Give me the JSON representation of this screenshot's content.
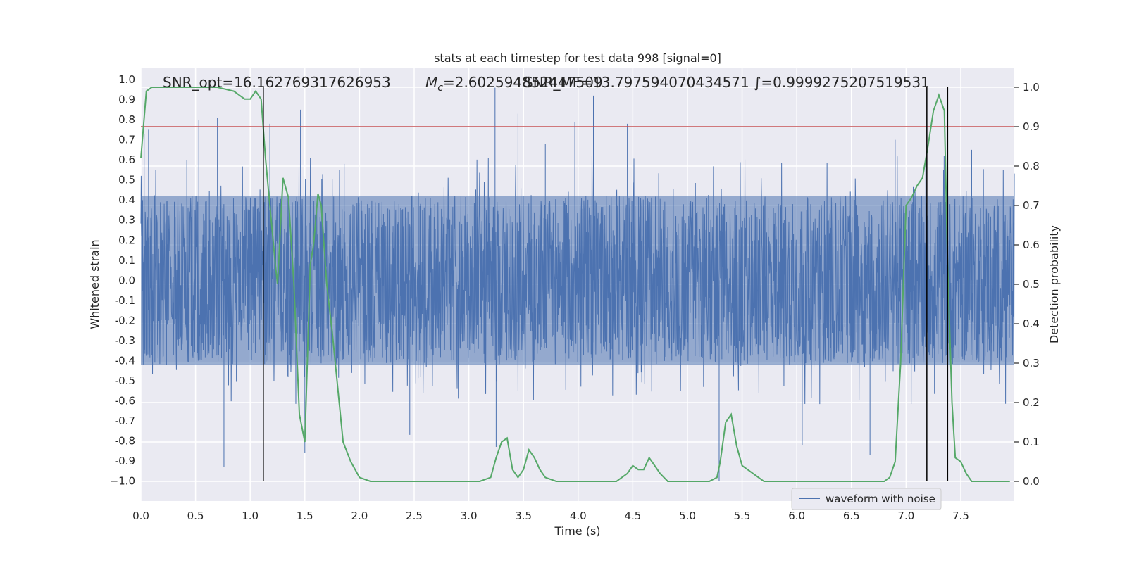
{
  "chart_data": {
    "type": "line",
    "title": "stats at each timestep for test data 998 [signal=0]",
    "xlabel": "Time (s)",
    "ylabel_left": "Whitened strain",
    "ylabel_right": "Detection probability",
    "xlim": [
      0.0,
      7.99
    ],
    "ylim_left": [
      -1.1,
      1.06
    ],
    "ylim_right": [
      -0.05,
      1.05
    ],
    "x_ticks": [
      0.0,
      0.5,
      1.0,
      1.5,
      2.0,
      2.5,
      3.0,
      3.5,
      4.0,
      4.5,
      5.0,
      5.5,
      6.0,
      6.5,
      7.0,
      7.5
    ],
    "x_tick_labels": [
      "0.0",
      "0.5",
      "1.0",
      "1.5",
      "2.0",
      "2.5",
      "3.0",
      "3.5",
      "4.0",
      "4.5",
      "5.0",
      "5.5",
      "6.0",
      "6.5",
      "7.0",
      "7.5"
    ],
    "y_left_ticks": [
      1.0,
      0.9,
      0.8,
      0.7,
      0.6,
      0.5,
      0.4,
      0.3,
      0.2,
      0.1,
      0.0,
      -0.1,
      -0.2,
      -0.3,
      -0.4,
      -0.5,
      -0.6,
      -0.7,
      -0.8,
      -0.9,
      -1.0
    ],
    "y_left_tick_labels": [
      "1.0",
      "0.9",
      "0.8",
      "0.7",
      "0.6",
      "0.5",
      "0.4",
      "0.3",
      "0.2",
      "0.1",
      "0.0",
      "-0.1",
      "-0.2",
      "-0.3",
      "-0.4",
      "-0.5",
      "-0.6",
      "-0.7",
      "-0.8",
      "-0.9",
      "−1.0"
    ],
    "y_right_ticks": [
      1.0,
      0.9,
      0.8,
      0.7,
      0.6,
      0.5,
      0.4,
      0.3,
      0.2,
      0.1,
      0.0
    ],
    "y_right_tick_labels": [
      "1.0",
      "0.9",
      "0.8",
      "0.7",
      "0.6",
      "0.5",
      "0.4",
      "0.3",
      "0.2",
      "0.1",
      "0.0"
    ],
    "annotations": {
      "snr_opt": "SNR_opt=16.162769317626953",
      "mc": "=2.602594852447509",
      "mc_symbol_main": "M",
      "mc_symbol_sub": "c",
      "snr_mf": "SNR_MF=13.797594070434571",
      "fi": "=0.9999275207519531",
      "fi_symbol": "∫"
    },
    "legend": {
      "label": "waveform with noise",
      "placement": "lower-right"
    },
    "grid": true,
    "threshold": {
      "value": 0.9,
      "axis": "right",
      "color": "#c44e52"
    },
    "vertical_markers": [
      1.12,
      7.19,
      7.38
    ],
    "series": [
      {
        "name": "waveform with noise",
        "axis": "left",
        "style": "dense-noise",
        "color": "#4c72b0",
        "core_amplitude": 0.42,
        "spikes": [
          [
            0.03,
            0.73
          ],
          [
            0.07,
            0.75
          ],
          [
            0.42,
            0.6
          ],
          [
            0.53,
            0.8
          ],
          [
            0.7,
            0.81
          ],
          [
            0.76,
            -0.93
          ],
          [
            1.18,
            0.78
          ],
          [
            1.46,
            0.85
          ],
          [
            1.5,
            -0.86
          ],
          [
            1.86,
            0.58
          ],
          [
            2.46,
            -0.77
          ],
          [
            3.24,
            0.96
          ],
          [
            3.25,
            -0.83
          ],
          [
            3.45,
            0.83
          ],
          [
            3.7,
            0.68
          ],
          [
            3.97,
            0.79
          ],
          [
            4.14,
            0.92
          ],
          [
            4.45,
            0.78
          ],
          [
            5.29,
            -1.0
          ],
          [
            6.05,
            -0.82
          ],
          [
            6.67,
            -0.87
          ],
          [
            6.9,
            0.7
          ],
          [
            7.18,
            0.6
          ],
          [
            7.6,
            0.65
          ]
        ]
      },
      {
        "name": "",
        "axis": "right",
        "color": "#55a868",
        "x": [
          0.0,
          0.05,
          0.1,
          0.2,
          0.3,
          0.5,
          0.7,
          0.85,
          0.95,
          1.0,
          1.05,
          1.1,
          1.14,
          1.18,
          1.23,
          1.25,
          1.3,
          1.35,
          1.4,
          1.45,
          1.5,
          1.55,
          1.58,
          1.62,
          1.65,
          1.7,
          1.75,
          1.85,
          1.92,
          2.0,
          2.1,
          2.3,
          2.5,
          2.7,
          3.0,
          3.1,
          3.2,
          3.25,
          3.3,
          3.35,
          3.4,
          3.45,
          3.5,
          3.55,
          3.6,
          3.65,
          3.7,
          3.8,
          4.0,
          4.2,
          4.35,
          4.45,
          4.5,
          4.55,
          4.6,
          4.65,
          4.7,
          4.75,
          4.82,
          4.9,
          5.0,
          5.2,
          5.27,
          5.3,
          5.35,
          5.4,
          5.45,
          5.5,
          5.55,
          5.6,
          5.65,
          5.7,
          5.75,
          5.9,
          6.2,
          6.5,
          6.8,
          6.85,
          6.9,
          6.93,
          6.95,
          7.0,
          7.05,
          7.1,
          7.15,
          7.2,
          7.25,
          7.3,
          7.35,
          7.38,
          7.42,
          7.45,
          7.5,
          7.55,
          7.6,
          7.65,
          7.7,
          7.8,
          7.95
        ],
        "y": [
          0.82,
          0.99,
          1.0,
          1.0,
          1.0,
          1.0,
          1.0,
          0.99,
          0.97,
          0.97,
          0.99,
          0.97,
          0.82,
          0.7,
          0.55,
          0.5,
          0.77,
          0.72,
          0.5,
          0.17,
          0.1,
          0.55,
          0.6,
          0.73,
          0.7,
          0.5,
          0.38,
          0.1,
          0.05,
          0.01,
          0.0,
          0.0,
          0.0,
          0.0,
          0.0,
          0.0,
          0.01,
          0.06,
          0.1,
          0.11,
          0.03,
          0.01,
          0.03,
          0.08,
          0.06,
          0.03,
          0.01,
          0.0,
          0.0,
          0.0,
          0.0,
          0.02,
          0.04,
          0.03,
          0.03,
          0.06,
          0.04,
          0.02,
          0.0,
          0.0,
          0.0,
          0.0,
          0.01,
          0.05,
          0.15,
          0.17,
          0.09,
          0.04,
          0.03,
          0.02,
          0.01,
          0.0,
          0.0,
          0.0,
          0.0,
          0.0,
          0.0,
          0.01,
          0.05,
          0.2,
          0.3,
          0.7,
          0.72,
          0.75,
          0.77,
          0.85,
          0.94,
          0.98,
          0.94,
          0.55,
          0.2,
          0.06,
          0.05,
          0.02,
          0.0,
          0.0,
          0.0,
          0.0,
          0.0
        ]
      }
    ]
  }
}
